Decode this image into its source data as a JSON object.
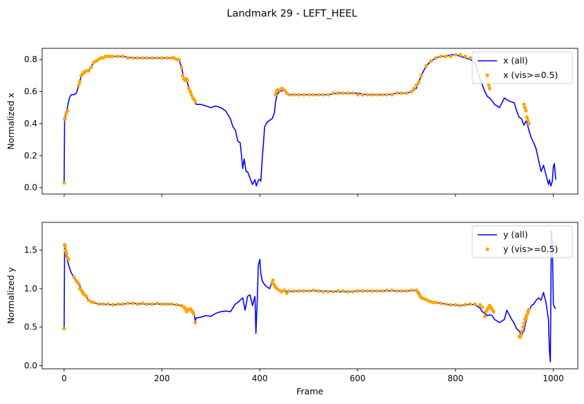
{
  "figure": {
    "suptitle": "Landmark 29 - LEFT_HEEL"
  },
  "chart_data": [
    {
      "type": "line",
      "title": "",
      "xlabel": "",
      "ylabel": "Normalized x",
      "xlim": [
        -45,
        1050
      ],
      "ylim": [
        -0.04,
        0.87
      ],
      "xticks": [
        0,
        200,
        400,
        600,
        800,
        1000
      ],
      "xtick_labels_visible": false,
      "yticks": [
        0.0,
        0.2,
        0.4,
        0.6,
        0.8
      ],
      "ytick_labels": [
        "0.0",
        "0.2",
        "0.4",
        "0.6",
        "0.8"
      ],
      "legend": {
        "position": "top-right",
        "entries": [
          "x (all)",
          "x (vis>=0.5)"
        ]
      },
      "series": [
        {
          "name": "x (all)",
          "style": "line",
          "color": "#0000ff",
          "x": [
            0,
            1,
            2,
            3,
            5,
            8,
            10,
            12,
            15,
            20,
            25,
            30,
            35,
            40,
            50,
            60,
            70,
            80,
            90,
            100,
            120,
            140,
            160,
            180,
            200,
            220,
            235,
            240,
            245,
            250,
            255,
            260,
            265,
            270,
            280,
            290,
            300,
            310,
            320,
            330,
            340,
            345,
            350,
            355,
            360,
            362,
            365,
            368,
            370,
            372,
            375,
            380,
            385,
            390,
            393,
            395,
            398,
            400,
            402,
            405,
            410,
            415,
            420,
            425,
            428,
            430,
            432,
            435,
            440,
            450,
            460,
            480,
            500,
            520,
            540,
            560,
            580,
            600,
            620,
            640,
            660,
            680,
            700,
            710,
            720,
            725,
            730,
            740,
            750,
            760,
            770,
            780,
            790,
            800,
            810,
            820,
            830,
            835,
            840,
            845,
            850,
            855,
            860,
            865,
            870,
            875,
            880,
            890,
            900,
            910,
            920,
            925,
            930,
            935,
            940,
            945,
            950,
            955,
            960,
            965,
            970,
            975,
            980,
            985,
            990,
            992,
            995,
            998,
            1000,
            1002,
            1005
          ],
          "y": [
            0.03,
            0.43,
            0.43,
            0.46,
            0.48,
            0.52,
            0.55,
            0.57,
            0.58,
            0.58,
            0.59,
            0.64,
            0.7,
            0.72,
            0.73,
            0.78,
            0.8,
            0.81,
            0.82,
            0.82,
            0.82,
            0.81,
            0.81,
            0.81,
            0.81,
            0.81,
            0.8,
            0.75,
            0.68,
            0.68,
            0.62,
            0.58,
            0.55,
            0.52,
            0.52,
            0.51,
            0.5,
            0.51,
            0.5,
            0.48,
            0.43,
            0.38,
            0.36,
            0.29,
            0.28,
            0.22,
            0.12,
            0.18,
            0.14,
            0.1,
            0.1,
            0.06,
            0.02,
            0.05,
            0.01,
            0.03,
            0.05,
            0.05,
            0.04,
            0.18,
            0.38,
            0.41,
            0.42,
            0.43,
            0.45,
            0.47,
            0.53,
            0.58,
            0.6,
            0.61,
            0.58,
            0.58,
            0.58,
            0.58,
            0.58,
            0.59,
            0.59,
            0.59,
            0.58,
            0.58,
            0.58,
            0.59,
            0.59,
            0.6,
            0.62,
            0.66,
            0.7,
            0.76,
            0.79,
            0.81,
            0.82,
            0.82,
            0.83,
            0.83,
            0.82,
            0.81,
            0.8,
            0.79,
            0.78,
            0.73,
            0.68,
            0.64,
            0.6,
            0.57,
            0.56,
            0.54,
            0.52,
            0.5,
            0.56,
            0.54,
            0.53,
            0.48,
            0.44,
            0.43,
            0.39,
            0.42,
            0.36,
            0.31,
            0.28,
            0.24,
            0.17,
            0.1,
            0.14,
            0.08,
            0.02,
            0.05,
            0.01,
            0.04,
            0.13,
            0.15,
            0.05
          ]
        },
        {
          "name": "x (vis>=0.5)",
          "style": "markers",
          "color": "#ffa500",
          "x": [
            0,
            1,
            2,
            4,
            7,
            30,
            32,
            35,
            38,
            40,
            42,
            45,
            50,
            55,
            60,
            65,
            70,
            75,
            80,
            85,
            90,
            95,
            100,
            110,
            120,
            130,
            140,
            150,
            160,
            170,
            180,
            190,
            200,
            210,
            220,
            225,
            230,
            235,
            240,
            242,
            245,
            247,
            250,
            252,
            255,
            258,
            260,
            263,
            266,
            268,
            432,
            434,
            436,
            438,
            440,
            445,
            450,
            455,
            460,
            470,
            480,
            490,
            500,
            510,
            520,
            530,
            540,
            550,
            560,
            570,
            580,
            590,
            600,
            610,
            620,
            630,
            640,
            650,
            660,
            670,
            680,
            690,
            700,
            710,
            715,
            720,
            725,
            730,
            740,
            750,
            760,
            770,
            780,
            790,
            800,
            810,
            820,
            830,
            840,
            850,
            856,
            858,
            860,
            862,
            864,
            866,
            868,
            870,
            940,
            942,
            944,
            946,
            948,
            950
          ],
          "y": [
            0.03,
            0.43,
            0.43,
            0.46,
            0.48,
            0.64,
            0.66,
            0.7,
            0.71,
            0.72,
            0.72,
            0.73,
            0.73,
            0.75,
            0.78,
            0.79,
            0.8,
            0.81,
            0.81,
            0.82,
            0.82,
            0.82,
            0.82,
            0.82,
            0.82,
            0.81,
            0.81,
            0.81,
            0.81,
            0.81,
            0.81,
            0.81,
            0.81,
            0.81,
            0.81,
            0.81,
            0.8,
            0.8,
            0.75,
            0.7,
            0.68,
            0.67,
            0.68,
            0.67,
            0.62,
            0.6,
            0.58,
            0.56,
            0.55,
            0.54,
            0.58,
            0.6,
            0.61,
            0.61,
            0.61,
            0.62,
            0.61,
            0.59,
            0.58,
            0.58,
            0.58,
            0.58,
            0.58,
            0.58,
            0.58,
            0.58,
            0.58,
            0.59,
            0.59,
            0.59,
            0.59,
            0.59,
            0.58,
            0.58,
            0.58,
            0.58,
            0.58,
            0.58,
            0.58,
            0.58,
            0.59,
            0.59,
            0.59,
            0.6,
            0.62,
            0.64,
            0.66,
            0.7,
            0.76,
            0.79,
            0.81,
            0.82,
            0.82,
            0.82,
            0.83,
            0.83,
            0.82,
            0.81,
            0.8,
            0.79,
            0.78,
            0.75,
            0.72,
            0.7,
            0.68,
            0.66,
            0.64,
            0.62,
            0.52,
            0.5,
            0.48,
            0.44,
            0.42,
            0.4
          ]
        }
      ]
    },
    {
      "type": "line",
      "title": "",
      "xlabel": "Frame",
      "ylabel": "Normalized y",
      "xlim": [
        -45,
        1050
      ],
      "ylim": [
        -0.04,
        1.86
      ],
      "xticks": [
        0,
        200,
        400,
        600,
        800,
        1000
      ],
      "xtick_labels": [
        "0",
        "200",
        "400",
        "600",
        "800",
        "1000"
      ],
      "yticks": [
        0.0,
        0.5,
        1.0,
        1.5
      ],
      "ytick_labels": [
        "0.0",
        "0.5",
        "1.0",
        "1.5"
      ],
      "legend": {
        "position": "top-right",
        "entries": [
          "y (all)",
          "y (vis>=0.5)"
        ]
      },
      "series": [
        {
          "name": "y (all)",
          "style": "line",
          "color": "#0000ff",
          "x": [
            0,
            1,
            2,
            3,
            5,
            8,
            12,
            15,
            20,
            25,
            30,
            35,
            40,
            45,
            50,
            60,
            70,
            80,
            100,
            120,
            140,
            160,
            180,
            200,
            220,
            230,
            240,
            245,
            250,
            255,
            260,
            265,
            268,
            270,
            280,
            290,
            300,
            310,
            320,
            330,
            340,
            345,
            350,
            355,
            360,
            365,
            370,
            375,
            380,
            385,
            390,
            392,
            395,
            397,
            400,
            402,
            405,
            410,
            415,
            420,
            425,
            430,
            440,
            450,
            460,
            480,
            500,
            520,
            540,
            560,
            580,
            600,
            620,
            640,
            660,
            680,
            700,
            720,
            725,
            730,
            740,
            750,
            760,
            770,
            780,
            790,
            800,
            810,
            820,
            830,
            840,
            850,
            855,
            860,
            865,
            870,
            875,
            880,
            885,
            890,
            900,
            905,
            910,
            915,
            920,
            925,
            930,
            935,
            940,
            945,
            950,
            955,
            960,
            965,
            970,
            975,
            980,
            985,
            990,
            992,
            994,
            996,
            998,
            1000,
            1002,
            1005
          ],
          "y": [
            0.48,
            1.56,
            1.55,
            1.48,
            1.4,
            1.33,
            1.25,
            1.2,
            1.15,
            1.1,
            1.06,
            1.0,
            0.95,
            0.9,
            0.85,
            0.82,
            0.8,
            0.8,
            0.79,
            0.8,
            0.81,
            0.8,
            0.8,
            0.8,
            0.8,
            0.79,
            0.78,
            0.75,
            0.7,
            0.72,
            0.74,
            0.7,
            0.58,
            0.62,
            0.63,
            0.65,
            0.64,
            0.68,
            0.7,
            0.71,
            0.7,
            0.75,
            0.8,
            0.82,
            0.85,
            0.88,
            0.72,
            0.9,
            0.92,
            0.78,
            0.9,
            0.42,
            0.88,
            1.3,
            1.38,
            1.2,
            1.1,
            1.05,
            1.02,
            1.0,
            1.08,
            1.02,
            0.98,
            0.97,
            0.96,
            0.97,
            0.97,
            0.97,
            0.97,
            0.96,
            0.96,
            0.97,
            0.97,
            0.97,
            0.97,
            0.97,
            0.97,
            0.98,
            0.96,
            0.9,
            0.86,
            0.83,
            0.82,
            0.81,
            0.8,
            0.79,
            0.79,
            0.78,
            0.79,
            0.8,
            0.79,
            0.75,
            0.7,
            0.68,
            0.65,
            0.66,
            0.65,
            0.6,
            0.58,
            0.56,
            0.6,
            0.72,
            0.66,
            0.6,
            0.55,
            0.48,
            0.45,
            0.4,
            0.45,
            0.6,
            0.7,
            0.78,
            0.8,
            0.85,
            0.88,
            0.85,
            0.95,
            0.82,
            0.6,
            0.2,
            0.05,
            1.75,
            1.6,
            0.8,
            0.76,
            0.74
          ]
        },
        {
          "name": "y (vis>=0.5)",
          "style": "markers",
          "color": "#ffa500",
          "x": [
            0,
            1,
            2,
            3,
            4,
            5,
            7,
            9,
            20,
            25,
            28,
            30,
            32,
            35,
            38,
            40,
            42,
            45,
            50,
            55,
            60,
            70,
            80,
            90,
            100,
            110,
            120,
            130,
            140,
            150,
            160,
            170,
            180,
            190,
            200,
            210,
            220,
            230,
            240,
            245,
            248,
            250,
            252,
            255,
            258,
            260,
            262,
            265,
            268,
            425,
            427,
            430,
            432,
            435,
            440,
            445,
            450,
            455,
            460,
            470,
            480,
            490,
            500,
            510,
            520,
            530,
            540,
            550,
            560,
            570,
            580,
            590,
            600,
            610,
            620,
            630,
            640,
            650,
            660,
            670,
            680,
            690,
            700,
            710,
            720,
            722,
            725,
            728,
            730,
            735,
            740,
            745,
            750,
            755,
            760,
            770,
            780,
            790,
            800,
            810,
            820,
            830,
            840,
            850,
            855,
            860,
            862,
            864,
            866,
            868,
            870,
            872,
            874,
            876,
            878,
            930,
            932,
            934,
            936,
            938,
            940,
            942,
            944,
            946,
            948,
            950
          ],
          "y": [
            0.48,
            1.57,
            1.55,
            1.5,
            1.48,
            1.45,
            1.4,
            1.38,
            1.15,
            1.1,
            1.08,
            1.06,
            1.0,
            0.98,
            0.95,
            0.93,
            0.92,
            0.9,
            0.85,
            0.83,
            0.82,
            0.8,
            0.8,
            0.8,
            0.79,
            0.8,
            0.8,
            0.81,
            0.81,
            0.8,
            0.81,
            0.8,
            0.8,
            0.81,
            0.8,
            0.8,
            0.8,
            0.79,
            0.78,
            0.76,
            0.74,
            0.7,
            0.72,
            0.73,
            0.74,
            0.72,
            0.7,
            0.67,
            0.56,
            1.08,
            1.11,
            1.05,
            1.02,
            1.0,
            0.98,
            0.96,
            0.98,
            0.94,
            0.97,
            0.97,
            0.97,
            0.97,
            0.97,
            0.98,
            0.97,
            0.96,
            0.96,
            0.96,
            0.97,
            0.97,
            0.96,
            0.96,
            0.97,
            0.97,
            0.97,
            0.97,
            0.97,
            0.97,
            0.98,
            0.98,
            0.97,
            0.97,
            0.97,
            0.98,
            0.98,
            0.96,
            0.93,
            0.9,
            0.88,
            0.87,
            0.86,
            0.84,
            0.83,
            0.82,
            0.82,
            0.81,
            0.8,
            0.79,
            0.79,
            0.78,
            0.79,
            0.8,
            0.8,
            0.79,
            0.76,
            0.64,
            0.7,
            0.72,
            0.74,
            0.76,
            0.78,
            0.76,
            0.74,
            0.72,
            0.7,
            0.38,
            0.37,
            0.4,
            0.45,
            0.5,
            0.55,
            0.6,
            0.63,
            0.66,
            0.7,
            0.73
          ]
        }
      ]
    }
  ]
}
